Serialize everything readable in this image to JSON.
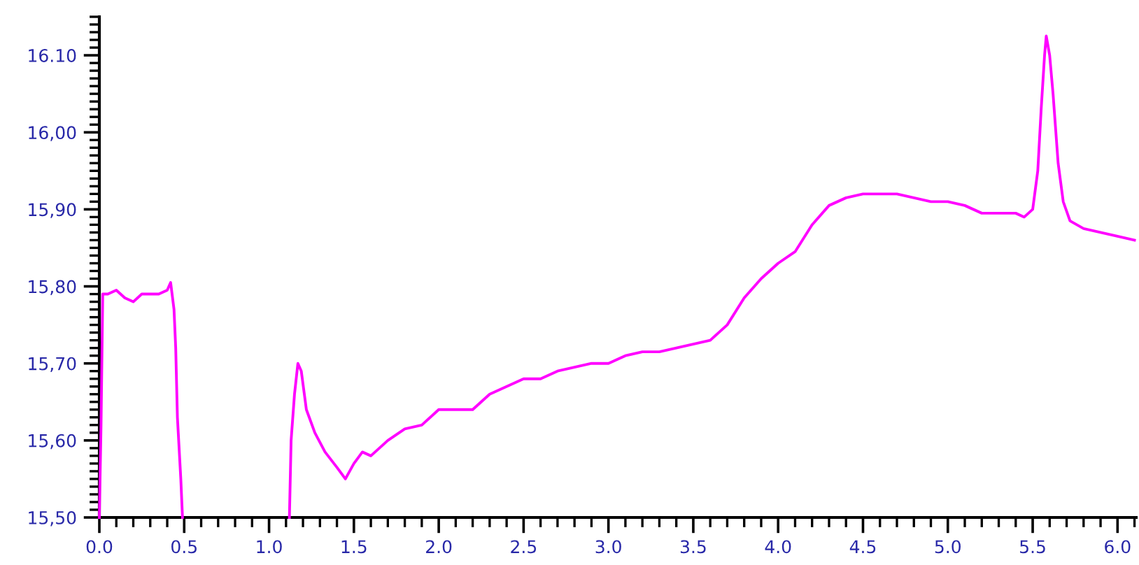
{
  "chart_data": {
    "type": "line",
    "x": [
      0.0,
      0.01,
      0.02,
      0.05,
      0.1,
      0.15,
      0.2,
      0.25,
      0.3,
      0.35,
      0.4,
      0.42,
      0.44,
      0.45,
      0.46,
      0.48,
      0.49,
      0.8,
      1.12,
      1.13,
      1.15,
      1.17,
      1.19,
      1.22,
      1.27,
      1.33,
      1.4,
      1.45,
      1.5,
      1.55,
      1.6,
      1.7,
      1.8,
      1.9,
      2.0,
      2.1,
      2.2,
      2.3,
      2.4,
      2.5,
      2.6,
      2.7,
      2.8,
      2.9,
      3.0,
      3.1,
      3.2,
      3.3,
      3.4,
      3.5,
      3.6,
      3.7,
      3.8,
      3.9,
      4.0,
      4.1,
      4.2,
      4.3,
      4.4,
      4.5,
      4.6,
      4.7,
      4.8,
      4.9,
      5.0,
      5.1,
      5.2,
      5.3,
      5.4,
      5.45,
      5.5,
      5.53,
      5.55,
      5.57,
      5.58,
      5.6,
      5.62,
      5.65,
      5.68,
      5.72,
      5.8,
      5.9,
      6.0,
      6.1
    ],
    "series": [
      {
        "color": "#ff00ff",
        "values": [
          15.5,
          15.62,
          15.79,
          15.79,
          15.795,
          15.785,
          15.78,
          15.79,
          15.79,
          15.79,
          15.795,
          15.805,
          15.77,
          15.72,
          15.63,
          15.55,
          15.5,
          null,
          15.5,
          15.6,
          15.66,
          15.7,
          15.69,
          15.64,
          15.61,
          15.585,
          15.565,
          15.55,
          15.57,
          15.585,
          15.58,
          15.6,
          15.615,
          15.62,
          15.64,
          15.64,
          15.64,
          15.66,
          15.67,
          15.68,
          15.68,
          15.69,
          15.695,
          15.7,
          15.7,
          15.71,
          15.715,
          15.715,
          15.72,
          15.725,
          15.73,
          15.75,
          15.785,
          15.81,
          15.83,
          15.845,
          15.88,
          15.905,
          15.915,
          15.92,
          15.92,
          15.92,
          15.915,
          15.91,
          15.91,
          15.905,
          15.895,
          15.895,
          15.895,
          15.89,
          15.9,
          15.95,
          16.03,
          16.1,
          16.125,
          16.1,
          16.05,
          15.96,
          15.91,
          15.885,
          15.875,
          15.87,
          15.865,
          15.86
        ]
      }
    ],
    "xlim": [
      0,
      6.11
    ],
    "ylim": [
      15.5,
      16.15
    ],
    "xticks": [
      {
        "value": 0,
        "label": "0.0"
      },
      {
        "value": 0.5,
        "label": "0.5"
      },
      {
        "value": 1,
        "label": "1.0"
      },
      {
        "value": 1.5,
        "label": "1.5"
      },
      {
        "value": 2,
        "label": "2.0"
      },
      {
        "value": 2.5,
        "label": "2.5"
      },
      {
        "value": 3,
        "label": "3.0"
      },
      {
        "value": 3.5,
        "label": "3.5"
      },
      {
        "value": 4,
        "label": "4.0"
      },
      {
        "value": 4.5,
        "label": "4.5"
      },
      {
        "value": 5,
        "label": "5.0"
      },
      {
        "value": 5.5,
        "label": "5.5"
      },
      {
        "value": 6,
        "label": "6.0"
      }
    ],
    "yticks": [
      {
        "value": 15.5,
        "label": "15,50"
      },
      {
        "value": 15.6,
        "label": "15,60"
      },
      {
        "value": 15.7,
        "label": "15,70"
      },
      {
        "value": 15.8,
        "label": "15,80"
      },
      {
        "value": 15.9,
        "label": "15,90"
      },
      {
        "value": 16.0,
        "label": "16,00"
      },
      {
        "value": 16.1,
        "label": "16.10"
      }
    ],
    "grid": false,
    "legend": false,
    "marker": "none",
    "line_style": "solid"
  }
}
